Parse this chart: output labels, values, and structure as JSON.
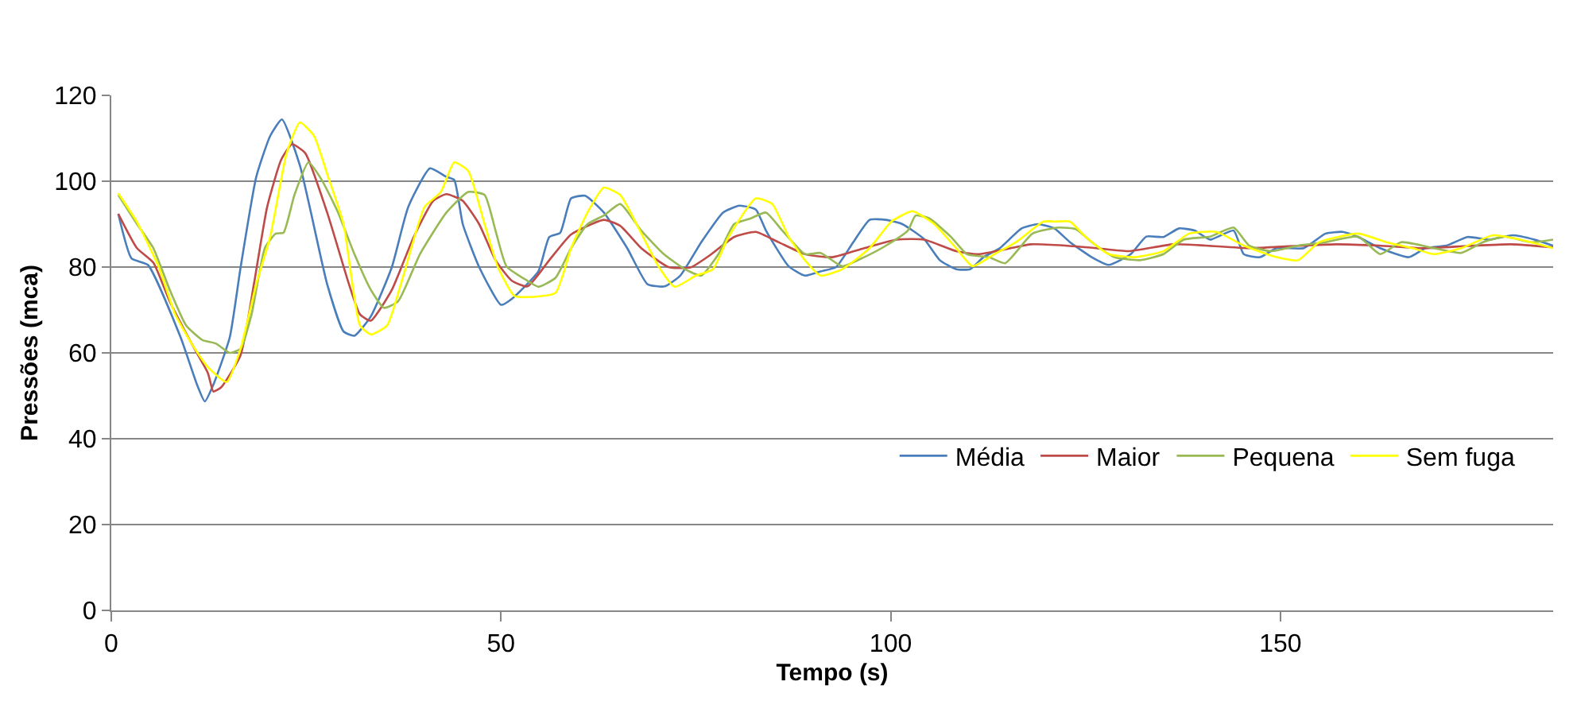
{
  "chart_data": {
    "type": "line",
    "xlabel": "Tempo (s)",
    "ylabel": "Pressões (mca)",
    "xlim": [
      0,
      185
    ],
    "ylim": [
      0,
      120
    ],
    "xticks": [
      0,
      50,
      100,
      150
    ],
    "yticks": [
      0,
      20,
      40,
      60,
      80,
      100,
      120
    ],
    "grid": "y",
    "legend": "bottom right",
    "marker": "none",
    "line_style": "solid",
    "series": [
      {
        "name": "Média",
        "color": "#4a7ebb",
        "x": [
          0.9,
          2.6,
          4.7,
          8.9,
          11,
          12,
          13.1,
          15.2,
          16.6,
          18.6,
          20.4,
          21.9,
          24.2,
          27.7,
          29.8,
          31.2,
          33.3,
          36,
          38.1,
          40.9,
          43,
          44,
          45.1,
          47.2,
          50,
          51.4,
          54.8,
          56.2,
          57.6,
          59,
          60.8,
          63.2,
          66.2,
          68.8,
          71,
          73,
          75.7,
          78.5,
          80.6,
          82.7,
          84,
          86.9,
          89,
          91,
          93,
          95.2,
          97.3,
          99.4,
          101.5,
          104.3,
          106.3,
          108.4,
          110.2,
          111.9,
          114,
          116.8,
          118.9,
          121,
          123,
          125.8,
          128,
          130.8,
          132.8,
          135,
          137,
          139,
          141,
          144,
          145.3,
          147.4,
          149.5,
          153,
          155.8,
          158,
          160,
          162.8,
          166.5,
          168.6,
          171.3,
          174,
          176.9,
          179.8,
          182.6,
          185
        ],
        "values": [
          92.4,
          82,
          80.5,
          63.6,
          52.6,
          48.7,
          52.6,
          63.6,
          80,
          101,
          110.6,
          114.4,
          103.7,
          76,
          65,
          64,
          68.5,
          80,
          94,
          103,
          101,
          100.3,
          90,
          80,
          71.2,
          72.6,
          79,
          87,
          88,
          96,
          96.6,
          92.7,
          84.4,
          76,
          75.5,
          78,
          85.8,
          92.7,
          94.3,
          93.4,
          88.5,
          80.2,
          78,
          79,
          80,
          85.8,
          91,
          91,
          90,
          86.5,
          81.6,
          79.5,
          79.5,
          82.3,
          84.4,
          89,
          90,
          89,
          85.8,
          82.3,
          80.5,
          83,
          87.1,
          87,
          89,
          88.5,
          86.4,
          88.5,
          83,
          82.3,
          84.4,
          84.4,
          87.8,
          88.2,
          87,
          84.4,
          82.3,
          84.4,
          85,
          87,
          86.4,
          87.4,
          86.4,
          85
        ]
      },
      {
        "name": "Maior",
        "color": "#be4b48",
        "x": [
          0.9,
          3.3,
          5.4,
          7.5,
          10.3,
          12.4,
          13.1,
          14.1,
          16.6,
          18.3,
          20,
          21.8,
          23.2,
          24.9,
          27.7,
          30.5,
          31.9,
          33.3,
          36,
          38.8,
          41.3,
          43,
          45.1,
          47.2,
          49.3,
          51.4,
          53.4,
          56.2,
          59,
          63.2,
          65.3,
          68,
          71.5,
          74.3,
          77,
          79.9,
          82.7,
          85.6,
          89,
          92.5,
          96.6,
          100.8,
          104.3,
          108.4,
          111.2,
          115.4,
          118,
          122.4,
          126.4,
          130.5,
          136.2,
          140.4,
          146,
          151.6,
          157.1,
          162.7,
          168.3,
          174,
          179.6,
          185
        ],
        "values": [
          92.4,
          84.4,
          81,
          72,
          62.2,
          55.3,
          51,
          52,
          59.5,
          76,
          94,
          105,
          108.6,
          106.5,
          92.7,
          76,
          69,
          67.5,
          74.7,
          87,
          95.4,
          97,
          95.4,
          90,
          81.6,
          76.8,
          75.5,
          81.6,
          87.6,
          91,
          89.6,
          84.4,
          80,
          79.9,
          83,
          87,
          88.2,
          85.8,
          83,
          82.3,
          84.4,
          86.4,
          86.4,
          83.7,
          83,
          84.4,
          85.3,
          85,
          84.4,
          83.7,
          85.3,
          85,
          84.4,
          84.9,
          85.3,
          85,
          84.4,
          84.9,
          85.3,
          84.6
        ]
      },
      {
        "name": "Pequena",
        "color": "#98b954",
        "x": [
          0.9,
          3.3,
          5.4,
          7.5,
          9.6,
          11.7,
          13.4,
          15.2,
          16.6,
          18,
          19.7,
          21.1,
          22.1,
          23.5,
          25.3,
          27,
          29.1,
          31.2,
          33.3,
          35,
          36.8,
          39.6,
          43,
          45.8,
          47.9,
          49.3,
          50.7,
          53.4,
          54.8,
          57,
          59,
          61.1,
          63.2,
          65.3,
          68,
          70.9,
          73.6,
          75.7,
          77.9,
          79.9,
          82,
          84,
          86.1,
          89,
          91,
          93.8,
          96.6,
          99.4,
          102.2,
          103.2,
          105,
          107.7,
          109.8,
          112.6,
          114.7,
          118.2,
          121.6,
          123.8,
          125.8,
          128.7,
          132,
          135,
          137.6,
          141,
          144,
          146,
          148.8,
          152.3,
          155.8,
          160,
          162.8,
          165.5,
          169.7,
          173.2,
          176,
          178.8,
          182.2,
          185
        ],
        "values": [
          96.8,
          90,
          84.4,
          74.7,
          66.4,
          63,
          62.2,
          60,
          61,
          69,
          84.4,
          87.8,
          88,
          96.8,
          104.4,
          100.3,
          92.7,
          83,
          74.7,
          70.5,
          72,
          83,
          92.7,
          97.5,
          96.8,
          88.5,
          80.2,
          76.8,
          75.4,
          77.5,
          84.4,
          90,
          92,
          94.7,
          88.5,
          83,
          79.5,
          78,
          83,
          90,
          91.3,
          92.7,
          88.5,
          83,
          83.3,
          80.2,
          82.3,
          85,
          88.5,
          92,
          91.3,
          87.1,
          83,
          82.3,
          80.9,
          87.8,
          89.2,
          88.8,
          85.8,
          82.3,
          81.6,
          83,
          86.4,
          87.1,
          89.2,
          85,
          83.7,
          85,
          85.8,
          87.1,
          83,
          85.8,
          84.4,
          83.3,
          85.8,
          87.1,
          85.8,
          86.4
        ]
      },
      {
        "name": "Sem fuga",
        "color": "#ffff00",
        "x": [
          0.9,
          3.3,
          6.1,
          8.2,
          10.3,
          12.4,
          14.8,
          16.6,
          18.6,
          20.4,
          22.5,
          24.2,
          26,
          27.7,
          29.8,
          31.9,
          33.3,
          35.4,
          37.4,
          40.2,
          42.3,
          44,
          45.8,
          47.9,
          49.6,
          51.7,
          53.4,
          57,
          59,
          61.1,
          63.2,
          65.3,
          67.4,
          70.2,
          72.3,
          75,
          77.2,
          79.2,
          82.7,
          84.8,
          86.9,
          89,
          91,
          93.8,
          97.3,
          100.1,
          102.8,
          105.6,
          108.4,
          110.5,
          113.3,
          116.1,
          119.6,
          121,
          123,
          125,
          128,
          131.4,
          135,
          138.3,
          141.8,
          145.3,
          149.5,
          152.3,
          155,
          160,
          163.6,
          167,
          169.7,
          173.2,
          177.3,
          180.8,
          185
        ],
        "values": [
          97.2,
          90.5,
          80,
          69,
          62.2,
          56.7,
          53.2,
          61,
          76,
          87.1,
          106.5,
          113.7,
          110.6,
          101.7,
          90,
          66.4,
          64.3,
          66.4,
          77.5,
          94,
          97.5,
          104.4,
          102.4,
          90,
          80,
          73.3,
          73,
          74,
          84.4,
          92.7,
          98.5,
          96.8,
          90,
          80.2,
          75.4,
          78,
          79.5,
          87,
          96,
          94.7,
          87.1,
          81.6,
          78,
          79.5,
          84.4,
          90.6,
          93,
          90,
          84.4,
          80.2,
          83,
          85.8,
          90.6,
          90.6,
          90.6,
          87.1,
          83,
          82.3,
          83.7,
          87.8,
          88.2,
          85,
          82.3,
          81.6,
          85.8,
          87.8,
          85.8,
          84.4,
          83,
          84.4,
          87.4,
          86.4,
          84.4
        ]
      }
    ]
  }
}
